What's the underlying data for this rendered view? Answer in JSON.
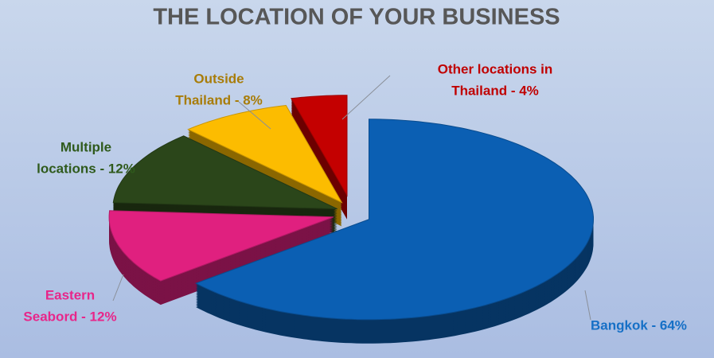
{
  "chart_data": {
    "type": "pie3d",
    "title": "THE LOCATION OF YOUR BUSINESS",
    "values": [
      64,
      12,
      12,
      8,
      4
    ],
    "value_labels": [
      [
        "Bangkok - 64%"
      ],
      [
        "Eastern",
        "Seabord - 12%"
      ],
      [
        "Multiple",
        "locations - 12%"
      ],
      [
        "Outside",
        "Thailand - 8%"
      ],
      [
        "Other locations in",
        "Thailand  - 4%"
      ]
    ],
    "colors": [
      "#0b5fb3",
      "#e0207f",
      "#2b461a",
      "#fcbc00",
      "#c40000"
    ],
    "label_colors": [
      "#1670c6",
      "#e8268a",
      "#2f5a1c",
      "#a87c08",
      "#c00000"
    ]
  }
}
